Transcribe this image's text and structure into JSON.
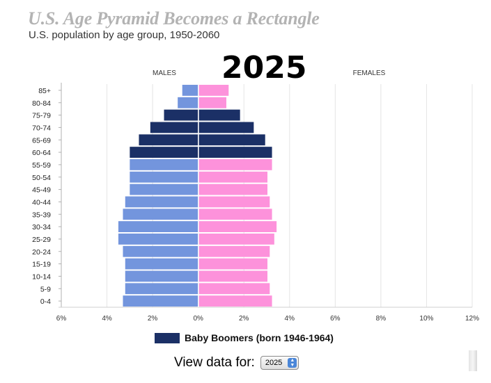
{
  "title": "U.S. Age Pyramid Becomes a Rectangle",
  "subtitle": "U.S. population by age group, 1950-2060",
  "year": "2025",
  "colors": {
    "males": "#7395dd",
    "females": "#fd92db",
    "baby_boomers_male": "#1b3066",
    "baby_boomers_female": "#1b3066"
  },
  "chart_data": {
    "type": "bar",
    "orientation": "horizontal",
    "headers": [
      "MALES",
      "FEMALES"
    ],
    "categories": [
      "85+",
      "80-84",
      "75-79",
      "70-74",
      "65-69",
      "60-64",
      "55-59",
      "50-54",
      "45-49",
      "40-44",
      "35-39",
      "30-34",
      "25-29",
      "20-24",
      "15-19",
      "10-14",
      "5-9",
      "0-4"
    ],
    "series": [
      {
        "name": "MALES",
        "values": [
          0.7,
          0.9,
          1.5,
          2.1,
          2.6,
          3.0,
          3.0,
          3.0,
          3.0,
          3.2,
          3.3,
          3.5,
          3.5,
          3.3,
          3.2,
          3.2,
          3.2,
          3.3
        ]
      },
      {
        "name": "FEMALES",
        "values": [
          1.3,
          1.2,
          1.8,
          2.4,
          2.9,
          3.2,
          3.2,
          3.0,
          3.0,
          3.1,
          3.2,
          3.4,
          3.3,
          3.1,
          3.0,
          3.0,
          3.1,
          3.2
        ]
      }
    ],
    "highlight_categories": [
      "75-79",
      "70-74",
      "65-69",
      "60-64"
    ],
    "legend": "Baby Boomers (born 1946-1964)",
    "x_tick_labels": [
      "6%",
      "4%",
      "2%",
      "0%",
      "2%",
      "4%",
      "6%",
      "8%",
      "10%",
      "12%"
    ],
    "xlim": [
      -6,
      12
    ],
    "grid": true
  },
  "controls": {
    "view_data_label": "View data for:",
    "selected_year": "2025"
  }
}
